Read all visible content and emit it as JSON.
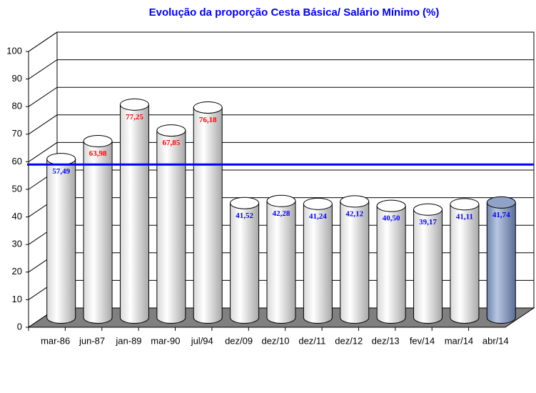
{
  "chart_data": {
    "type": "cylinder-bar",
    "title": "Evolução da proporção Cesta Básica/ Salário Mínimo (%)",
    "categories": [
      "mar-86",
      "jun-87",
      "jan-89",
      "mar-90",
      "jul/94",
      "dez/09",
      "dez/10",
      "dez/11",
      "dez/12",
      "dez/13",
      "fev/14",
      "mar/14",
      "abr/14"
    ],
    "values": [
      57.49,
      63.98,
      77.25,
      67.85,
      76.18,
      41.52,
      42.28,
      41.24,
      42.12,
      40.5,
      39.17,
      41.11,
      41.74
    ],
    "value_labels": [
      "57,49",
      "63,98",
      "77,25",
      "67,85",
      "76,18",
      "41,52",
      "42,28",
      "41,24",
      "42,12",
      "40,50",
      "39,17",
      "41,11",
      "41,74"
    ],
    "colors": [
      "#ffffff",
      "#ffffff",
      "#ffffff",
      "#ffffff",
      "#ffffff",
      "#ffffff",
      "#ffffff",
      "#ffffff",
      "#ffffff",
      "#ffffff",
      "#ffffff",
      "#ffffff",
      "#8fa3c7"
    ],
    "label_colors": [
      "#0000ff",
      "#ff0000",
      "#ff0000",
      "#ff0000",
      "#ff0000",
      "#0000ff",
      "#0000ff",
      "#0000ff",
      "#0000ff",
      "#0000ff",
      "#0000ff",
      "#0000ff",
      "#0000ff"
    ],
    "reference_line": 59,
    "reference_color": "#0000ff",
    "ylim": [
      0,
      100
    ],
    "yticks": [
      0,
      10,
      20,
      30,
      40,
      50,
      60,
      70,
      80,
      90,
      100
    ],
    "grid": true
  }
}
